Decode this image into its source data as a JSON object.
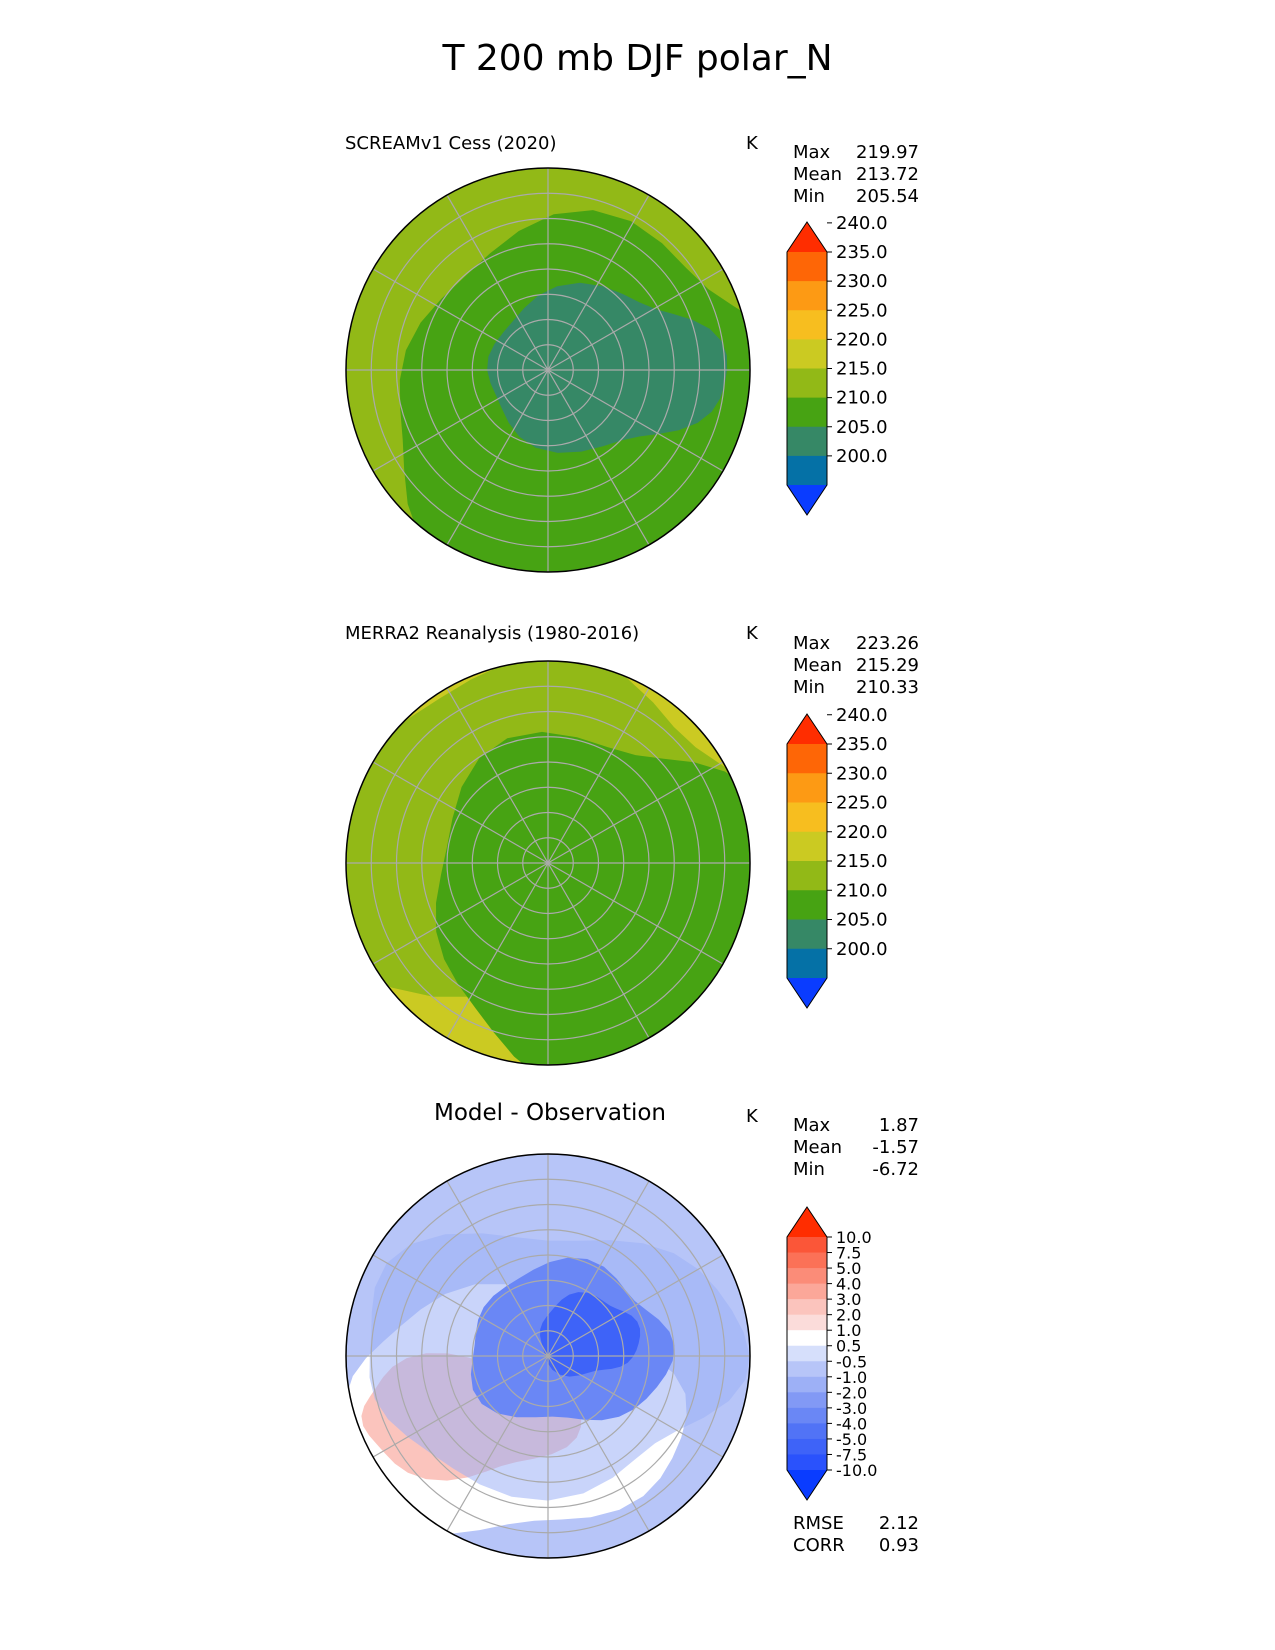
{
  "figure_title": "T 200 mb DJF polar_N",
  "panels": [
    {
      "title": "SCREAMv1 Cess (2020)",
      "units": "K",
      "stats": [
        {
          "label": "Max",
          "value": "219.97"
        },
        {
          "label": "Mean",
          "value": "213.72"
        },
        {
          "label": "Min",
          "value": "205.54"
        }
      ]
    },
    {
      "title": "MERRA2 Reanalysis (1980-2016)",
      "units": "K",
      "stats": [
        {
          "label": "Max",
          "value": "223.26"
        },
        {
          "label": "Mean",
          "value": "215.29"
        },
        {
          "label": "Min",
          "value": "210.33"
        }
      ]
    },
    {
      "title": "Model - Observation",
      "units": "K",
      "stats": [
        {
          "label": "Max",
          "value": "1.87"
        },
        {
          "label": "Mean",
          "value": "-1.57"
        },
        {
          "label": "Min",
          "value": "-6.72"
        }
      ],
      "extra_stats": [
        {
          "label": "RMSE",
          "value": "2.12"
        },
        {
          "label": "CORR",
          "value": "0.93"
        }
      ]
    }
  ],
  "chart_data": [
    {
      "type": "heatmap",
      "projection": "north polar stereographic",
      "title": "SCREAMv1 Cess (2020)",
      "units": "K",
      "colorbar_levels": [
        "200.0",
        "205.0",
        "210.0",
        "215.0",
        "220.0",
        "225.0",
        "230.0",
        "235.0",
        "240.0"
      ],
      "colorbar_colors": [
        "#0a3cff",
        "#0571a6",
        "#368866",
        "#47a313",
        "#92b917",
        "#cbca22",
        "#f7be1f",
        "#fd9a14",
        "#fe6606",
        "#ff2d00"
      ],
      "zones_outer_to_inner": [
        "#92b917",
        "#47a313",
        "#368866"
      ],
      "extend": "both"
    },
    {
      "type": "heatmap",
      "projection": "north polar stereographic",
      "title": "MERRA2 Reanalysis (1980-2016)",
      "units": "K",
      "colorbar_levels": [
        "200.0",
        "205.0",
        "210.0",
        "215.0",
        "220.0",
        "225.0",
        "230.0",
        "235.0",
        "240.0"
      ],
      "colorbar_colors": [
        "#0a3cff",
        "#0571a6",
        "#368866",
        "#47a313",
        "#92b917",
        "#cbca22",
        "#f7be1f",
        "#fd9a14",
        "#fe6606",
        "#ff2d00"
      ],
      "zones_outer_to_inner": [
        "#cbca22",
        "#92b917",
        "#47a313"
      ],
      "extend": "both"
    },
    {
      "type": "heatmap",
      "projection": "north polar stereographic",
      "title": "Model - Observation",
      "units": "K",
      "colorbar_levels": [
        "-10.0",
        "-7.5",
        "-5.0",
        "-4.0",
        "-3.0",
        "-2.0",
        "-1.0",
        "-0.5",
        "0.5",
        "1.0",
        "2.0",
        "3.0",
        "4.0",
        "5.0",
        "7.5",
        "10.0"
      ],
      "colorbar_colors": [
        "#0a3cff",
        "#2a52fc",
        "#3e63f8",
        "#5173f6",
        "#6a87f5",
        "#8299f5",
        "#9db0f6",
        "#b7c5f8",
        "#d6dffb",
        "#ffffff",
        "#fbdcda",
        "#fbc4bd",
        "#fba799",
        "#fb8c78",
        "#fb7157",
        "#fb5638",
        "#ff2d00"
      ],
      "extend": "both"
    }
  ]
}
